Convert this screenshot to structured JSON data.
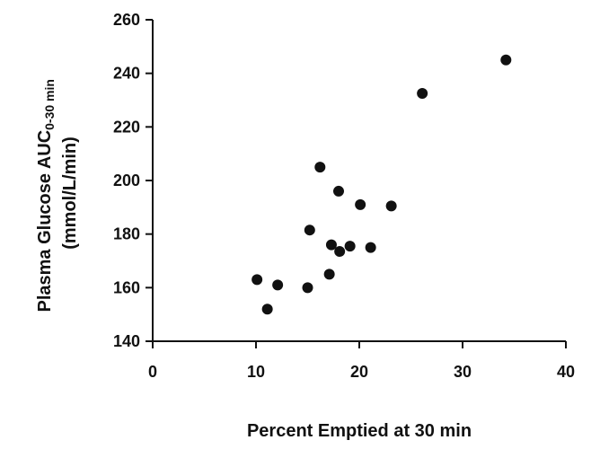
{
  "chart_data": {
    "type": "scatter",
    "title": "",
    "xlabel": "Percent Emptied at 30 min",
    "ylabel": {
      "line1_main": "Plasma Glucose AUC",
      "line1_sub": "0-30 min",
      "line2": "(mmol/L/min)"
    },
    "xlim": [
      0,
      40
    ],
    "ylim": [
      140,
      260
    ],
    "xticks": [
      0,
      10,
      20,
      30,
      40
    ],
    "yticks": [
      140,
      160,
      180,
      200,
      220,
      240,
      260
    ],
    "grid": false,
    "points": [
      {
        "x": 10.1,
        "y": 163
      },
      {
        "x": 11.1,
        "y": 152
      },
      {
        "x": 12.1,
        "y": 161
      },
      {
        "x": 15.0,
        "y": 160
      },
      {
        "x": 15.2,
        "y": 181.5
      },
      {
        "x": 16.2,
        "y": 205
      },
      {
        "x": 17.1,
        "y": 165
      },
      {
        "x": 17.3,
        "y": 176
      },
      {
        "x": 18.0,
        "y": 196
      },
      {
        "x": 18.1,
        "y": 173.5
      },
      {
        "x": 19.1,
        "y": 175.5
      },
      {
        "x": 20.1,
        "y": 191
      },
      {
        "x": 21.1,
        "y": 175
      },
      {
        "x": 23.1,
        "y": 190.5
      },
      {
        "x": 26.1,
        "y": 232.5
      },
      {
        "x": 34.2,
        "y": 245
      }
    ]
  }
}
